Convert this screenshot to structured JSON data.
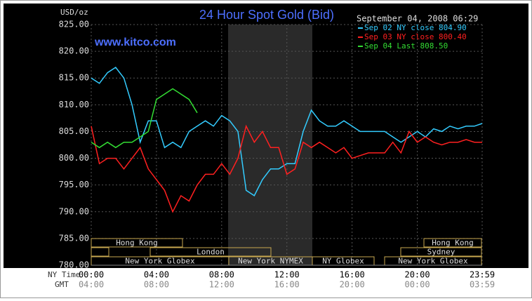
{
  "chart_data": {
    "type": "line",
    "title": "24 Hour Spot Gold (Bid)",
    "subtitle": "September 04, 2008 06:29",
    "annotation": "www.kitco.com",
    "y_label": "USD/oz",
    "x_label": "NY Time",
    "x2_label": "GMT",
    "x": [
      0,
      0.5,
      1,
      1.5,
      2,
      2.5,
      3,
      3.5,
      4,
      4.5,
      5,
      5.5,
      6,
      6.5,
      7,
      7.5,
      8,
      8.5,
      9,
      9.5,
      10,
      10.5,
      11,
      11.5,
      12,
      12.5,
      13,
      13.5,
      14,
      14.5,
      15,
      15.5,
      16,
      16.5,
      17,
      17.5,
      18,
      18.5,
      19,
      19.5,
      20,
      20.5,
      21,
      21.5,
      22,
      22.5,
      23,
      23.5,
      23.98
    ],
    "series": [
      {
        "name": "Sep 02 NY close 804.90",
        "color": "#33ccff",
        "values": [
          815,
          814,
          816,
          817,
          815,
          810,
          803,
          807,
          807,
          802,
          803,
          802,
          805,
          806,
          807,
          806,
          808,
          807,
          805,
          794,
          793,
          796,
          798,
          798,
          799,
          799,
          805,
          809,
          807,
          806,
          806,
          807,
          806,
          805,
          805,
          805,
          805,
          804,
          803,
          804,
          805,
          804,
          805.5,
          805,
          806,
          805.5,
          806,
          806,
          806.5
        ]
      },
      {
        "name": "Sep 03 NY close 800.40",
        "color": "#ff2020",
        "values": [
          806,
          799,
          800,
          800,
          798,
          800,
          802,
          798,
          796,
          794,
          790,
          793,
          792,
          795,
          797,
          797,
          799,
          797,
          800,
          806,
          803,
          805,
          802,
          802,
          797,
          798,
          803,
          802,
          803,
          802,
          801,
          802,
          800,
          800.5,
          801,
          801,
          801,
          803,
          801,
          805,
          803,
          804,
          803,
          802.5,
          803,
          803,
          803.5,
          803,
          803
        ]
      },
      {
        "name": "Sep 04 Last 808.50",
        "color": "#33dd33",
        "values": [
          803,
          802,
          803,
          802,
          803,
          803,
          804,
          805,
          811,
          812,
          813,
          812,
          811,
          808.5,
          null,
          null,
          null,
          null,
          null,
          null,
          null,
          null,
          null,
          null,
          null,
          null,
          null,
          null,
          null,
          null,
          null,
          null,
          null,
          null,
          null,
          null,
          null,
          null,
          null,
          null,
          null,
          null,
          null,
          null,
          null,
          null,
          null,
          null,
          null
        ]
      }
    ],
    "xlim": [
      0,
      23.98
    ],
    "ylim": [
      780,
      825
    ],
    "yticks": [
      {
        "value": 780,
        "label": "780.00"
      },
      {
        "value": 785,
        "label": "785.00"
      },
      {
        "value": 790,
        "label": "790.00"
      },
      {
        "value": 795,
        "label": "795.00"
      },
      {
        "value": 800,
        "label": "800.00"
      },
      {
        "value": 805,
        "label": "805.00"
      },
      {
        "value": 810,
        "label": "810.00"
      },
      {
        "value": 815,
        "label": "815.00"
      },
      {
        "value": 820,
        "label": "820.00"
      },
      {
        "value": 825,
        "label": "825.00"
      }
    ],
    "xticks": [
      {
        "value": 0,
        "label": "00:00"
      },
      {
        "value": 4,
        "label": "04:00"
      },
      {
        "value": 8,
        "label": "08:00"
      },
      {
        "value": 12,
        "label": "12:00"
      },
      {
        "value": 16,
        "label": "16:00"
      },
      {
        "value": 20,
        "label": "20:00"
      },
      {
        "value": 23.98,
        "label": "23:59"
      }
    ],
    "x2ticks": [
      {
        "value": 0,
        "label": "04:00"
      },
      {
        "value": 4,
        "label": "08:00"
      },
      {
        "value": 8,
        "label": "12:00"
      },
      {
        "value": 12,
        "label": "16:00"
      },
      {
        "value": 16,
        "label": "20:00"
      },
      {
        "value": 20,
        "label": "00:00"
      },
      {
        "value": 23.98,
        "label": "03:59"
      }
    ],
    "grid": true,
    "sessions": [
      "Hong Kong",
      "Hong Kong",
      "London",
      "Sydney",
      "New York Globex",
      "New York NYMEX",
      "NY Globex",
      "New York Globex"
    ]
  }
}
